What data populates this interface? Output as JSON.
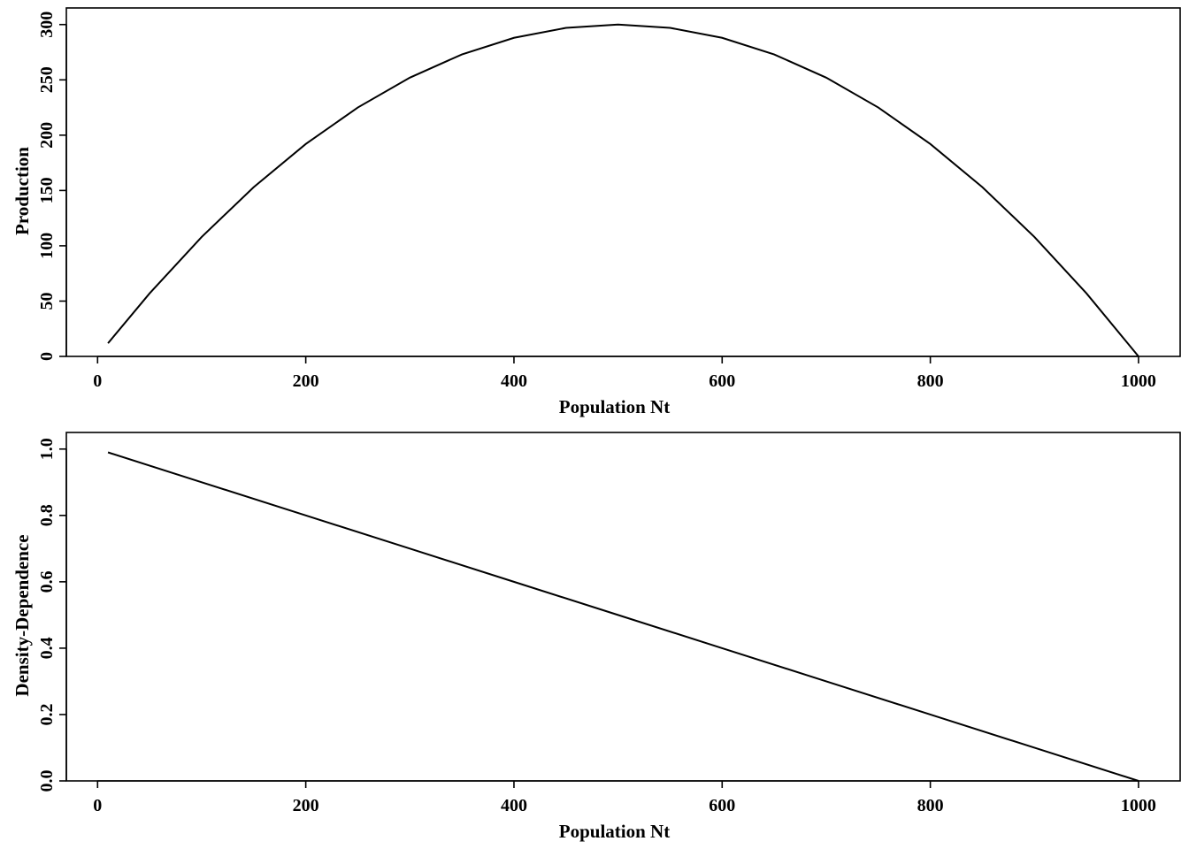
{
  "chart_data": [
    {
      "type": "line",
      "xlabel": "Population Nt",
      "ylabel": "Production",
      "xlim": [
        -30,
        1040
      ],
      "ylim": [
        0,
        315
      ],
      "x_ticks": [
        0,
        200,
        400,
        600,
        800,
        1000
      ],
      "y_ticks": [
        0,
        50,
        100,
        150,
        200,
        250,
        300
      ],
      "series": [
        {
          "x": [
            10,
            50,
            100,
            150,
            200,
            250,
            300,
            350,
            400,
            450,
            500,
            550,
            600,
            650,
            700,
            750,
            800,
            850,
            900,
            950,
            1000
          ],
          "y": [
            11.9,
            57,
            108,
            153,
            192,
            225,
            252,
            273,
            288,
            297,
            300,
            297,
            288,
            273,
            252,
            225,
            192,
            153,
            108,
            57,
            0
          ]
        }
      ]
    },
    {
      "type": "line",
      "xlabel": "Population Nt",
      "ylabel": "Density-Dependence",
      "xlim": [
        -30,
        1040
      ],
      "ylim": [
        0,
        1.05
      ],
      "x_ticks": [
        0,
        200,
        400,
        600,
        800,
        1000
      ],
      "y_ticks": [
        "0.0",
        "0.2",
        "0.4",
        "0.6",
        "0.8",
        "1.0"
      ],
      "series": [
        {
          "x": [
            10,
            100,
            200,
            300,
            400,
            500,
            600,
            700,
            800,
            900,
            1000
          ],
          "y": [
            0.99,
            0.9,
            0.8,
            0.7,
            0.6,
            0.5,
            0.4,
            0.3,
            0.2,
            0.1,
            0.0
          ]
        }
      ]
    }
  ]
}
